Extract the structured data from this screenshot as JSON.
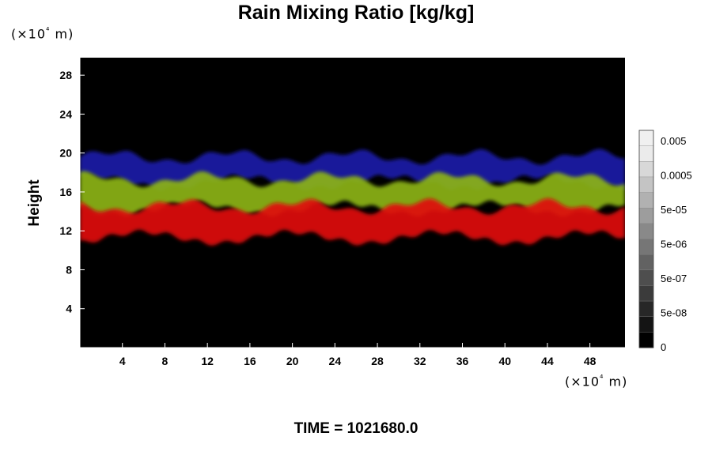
{
  "chart_data": {
    "type": "heatmap",
    "title": "Rain Mixing Ratio [kg/kg]",
    "ylabel": "Height",
    "xlabel": "",
    "x_unit": "(×10⁴ m)",
    "y_unit": "(×10⁴ m)",
    "xlim": [
      0,
      51.3
    ],
    "ylim": [
      0,
      29.8
    ],
    "x_ticks": [
      "4",
      "8",
      "12",
      "16",
      "20",
      "24",
      "28",
      "32",
      "36",
      "40",
      "44",
      "48"
    ],
    "y_ticks": [
      "4",
      "8",
      "12",
      "16",
      "20",
      "24",
      "28"
    ],
    "x_tick_values": [
      4,
      8,
      12,
      16,
      20,
      24,
      28,
      32,
      36,
      40,
      44,
      48
    ],
    "y_tick_values": [
      4,
      8,
      12,
      16,
      20,
      24,
      28
    ],
    "colorbar": {
      "levels": 14,
      "labels": [
        "0.005",
        "0.0005",
        "5e-05",
        "5e-06",
        "5e-07",
        "5e-08",
        "0"
      ]
    },
    "layers": [
      {
        "color": "#1c1ca8",
        "y_bottom": 17.0,
        "y_top": 19.6
      },
      {
        "color": "#8cb414",
        "y_bottom": 14.3,
        "y_top": 17.3
      },
      {
        "color": "#e00c0c",
        "y_bottom": 11.3,
        "y_top": 14.5
      }
    ],
    "colors": {
      "background": "#000000",
      "blue": "#1c1ca8",
      "green": "#8cb414",
      "red": "#e00c0c"
    }
  },
  "footer": {
    "time_label": "TIME = 1021680.0"
  }
}
